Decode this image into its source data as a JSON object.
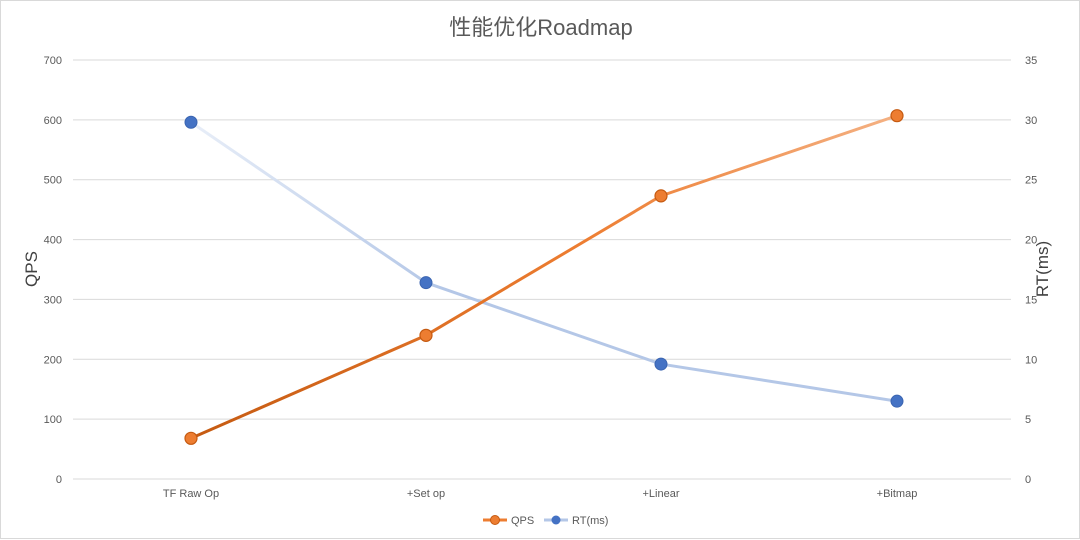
{
  "chart_data": {
    "type": "line",
    "title": "性能优化Roadmap",
    "categories": [
      "TF Raw Op",
      "+Set op",
      "+Linear",
      "+Bitmap"
    ],
    "ylabel": "QPS",
    "y2label": "RT(ms)",
    "ylim": [
      0,
      700
    ],
    "y2lim": [
      0,
      35
    ],
    "yticks": [
      "0",
      "100",
      "200",
      "300",
      "400",
      "500",
      "600",
      "700"
    ],
    "y2ticks": [
      "0",
      "5",
      "10",
      "15",
      "20",
      "25",
      "30",
      "35"
    ],
    "grid": true,
    "legend_position": "bottom",
    "series": [
      {
        "name": "QPS",
        "axis": "left",
        "values": [
          68,
          240,
          473,
          607
        ],
        "color": "#ed7d31",
        "color_start": "#c55a11",
        "color_end": "#f4b183"
      },
      {
        "name": "RT(ms)",
        "axis": "right",
        "values": [
          29.8,
          16.4,
          9.6,
          6.5
        ],
        "color": "#4472c4",
        "line_color": "#b4c7e7",
        "line_color_start": "#e8eef8"
      }
    ]
  }
}
